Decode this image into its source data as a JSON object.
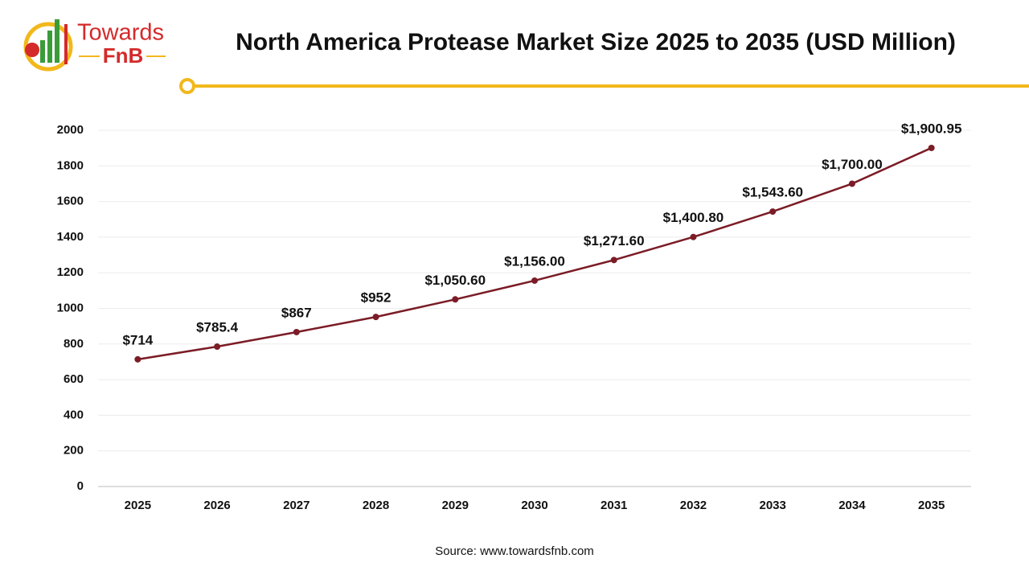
{
  "logo": {
    "top": "Towards",
    "bottom": "FnB"
  },
  "chart_data": {
    "type": "line",
    "title": "North America Protease Market Size 2025 to 2035 (USD Million)",
    "source": "Source: www.towardsfnb.com",
    "categories": [
      "2025",
      "2026",
      "2027",
      "2028",
      "2029",
      "2030",
      "2031",
      "2032",
      "2033",
      "2034",
      "2035"
    ],
    "values": [
      714,
      785.4,
      867,
      952,
      1050.6,
      1156,
      1271.6,
      1400.8,
      1543.6,
      1700,
      1900.95
    ],
    "value_labels": [
      "$714",
      "$785.4",
      "$867",
      "$952",
      "$1,050.60",
      "$1,156.00",
      "$1,271.60",
      "$1,400.80",
      "$1,543.60",
      "$1,700.00",
      "$1,900.95"
    ],
    "color": "#7b1c26",
    "ylim": [
      0,
      2000
    ],
    "yticks": [
      0,
      200,
      400,
      600,
      800,
      1000,
      1200,
      1400,
      1600,
      1800,
      2000
    ],
    "grid": true
  }
}
